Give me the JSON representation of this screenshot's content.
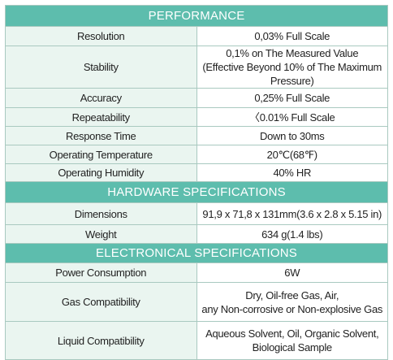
{
  "sections": [
    {
      "title": "PERFORMANCE",
      "rows": [
        {
          "label": "Resolution",
          "lines": [
            "0,03% Full Scale"
          ]
        },
        {
          "label": "Stability",
          "lines": [
            "0,1% on The Measured Value",
            "(Effective Beyond 10% of The Maximum Pressure)"
          ]
        },
        {
          "label": "Accuracy",
          "lines": [
            "0,25% Full Scale"
          ]
        },
        {
          "label": "Repeatability",
          "lines": [
            "〈0.01% Full Scale"
          ]
        },
        {
          "label": "Response Time",
          "lines": [
            "Down to 30ms"
          ]
        },
        {
          "label": "Operating Temperature",
          "lines": [
            "20℃(68℉)"
          ]
        },
        {
          "label": "Operating Humidity",
          "lines": [
            "40% HR"
          ]
        }
      ]
    },
    {
      "title": "HARDWARE SPECIFICATIONS",
      "rows": [
        {
          "label": "Dimensions",
          "lines": [
            "91,9 x 71,8 x 131mm(3.6 x 2.8 x 5.15 in)"
          ]
        },
        {
          "label": "Weight",
          "lines": [
            "634 g(1.4 lbs)"
          ]
        }
      ]
    },
    {
      "title": "ELECTRONICAL SPECIFICATIONS",
      "rows": [
        {
          "label": "Power Consumption",
          "lines": [
            "6W"
          ]
        },
        {
          "label": "Gas Compatibility",
          "lines": [
            "Dry, Oil-free Gas, Air,",
            "any Non-corrosive or Non-explosive Gas"
          ]
        },
        {
          "label": "Liquid Compatibility",
          "lines": [
            "Aqueous Solvent, Oil, Organic Solvent,",
            "Biological Sample"
          ]
        }
      ]
    }
  ]
}
